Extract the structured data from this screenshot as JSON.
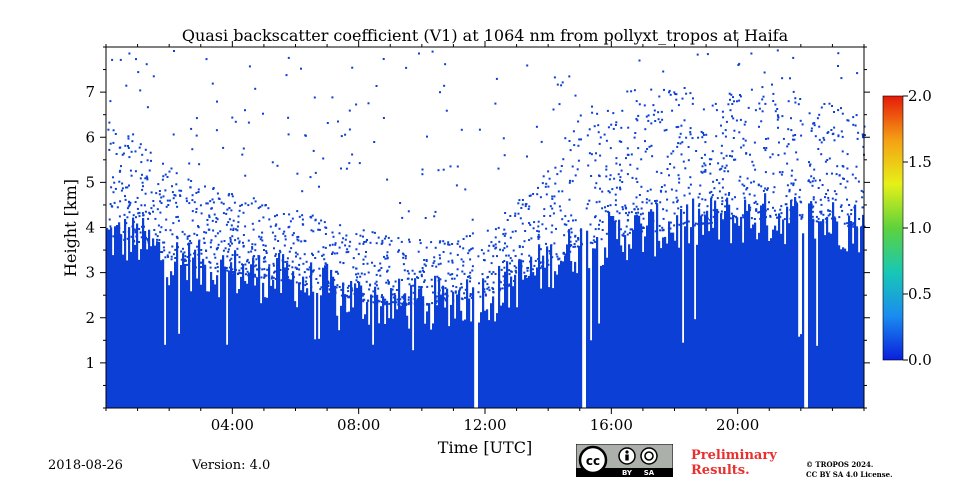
{
  "chart_data": {
    "type": "heatmap",
    "title": "Quasi backscatter coefficient (V1) at 1064 nm from pollyxt_tropos at Haifa",
    "xlabel": "Time [UTC]",
    "ylabel": "Height [km]",
    "x_range_hours": [
      0,
      24
    ],
    "ylim_km": [
      0,
      8
    ],
    "x_ticks": [
      {
        "hour": 4,
        "label": "04:00"
      },
      {
        "hour": 8,
        "label": "08:00"
      },
      {
        "hour": 12,
        "label": "12:00"
      },
      {
        "hour": 16,
        "label": "16:00"
      },
      {
        "hour": 20,
        "label": "20:00"
      }
    ],
    "y_ticks": [
      {
        "km": 1,
        "label": "1"
      },
      {
        "km": 2,
        "label": "2"
      },
      {
        "km": 3,
        "label": "3"
      },
      {
        "km": 4,
        "label": "4"
      },
      {
        "km": 5,
        "label": "5"
      },
      {
        "km": 6,
        "label": "6"
      },
      {
        "km": 7,
        "label": "7"
      }
    ],
    "colorbar": {
      "range": [
        0.0,
        2.0
      ],
      "ticks": [
        "0.0",
        "0.5",
        "1.0",
        "1.5",
        "2.0"
      ],
      "colors": [
        "#0a1fdc",
        "#1a8cf0",
        "#18c8b4",
        "#5ed23c",
        "#e6f018",
        "#f5a014",
        "#e61a0a"
      ]
    },
    "signal_color": "#0b3fd6",
    "signal_top_profile": {
      "hours": [
        0,
        1,
        2,
        3,
        4,
        5,
        6,
        7,
        8,
        9,
        10,
        11,
        12,
        13,
        14,
        15,
        16,
        17,
        18,
        19,
        20,
        21,
        22,
        23,
        24
      ],
      "solid_top_km": [
        3.8,
        3.7,
        3.3,
        3.1,
        3.0,
        2.9,
        2.8,
        2.6,
        2.4,
        2.3,
        2.3,
        2.4,
        2.5,
        2.8,
        3.2,
        3.6,
        3.8,
        3.9,
        4.0,
        4.1,
        4.2,
        4.2,
        4.2,
        4.1,
        4.0
      ],
      "speckle_top_km": [
        6.5,
        6.0,
        5.4,
        5.0,
        4.8,
        4.6,
        4.4,
        4.2,
        4.0,
        3.9,
        3.8,
        3.8,
        4.0,
        4.6,
        5.2,
        6.6,
        7.0,
        7.2,
        7.2,
        7.0,
        7.0,
        7.2,
        7.0,
        6.8,
        6.5
      ]
    },
    "data_gaps_hours": [
      {
        "start": 11.6,
        "end": 11.75
      },
      {
        "start": 15.05,
        "end": 15.18
      },
      {
        "start": 22.05,
        "end": 22.2
      }
    ]
  },
  "footer": {
    "date": "2018-08-26",
    "version": "Version: 4.0",
    "preliminary_line1": "Preliminary",
    "preliminary_line2": "Results.",
    "copyright_line1": "© TROPOS 2024.",
    "copyright_line2": "CC BY SA 4.0 License.",
    "cc_by": "BY",
    "cc_sa": "SA"
  }
}
